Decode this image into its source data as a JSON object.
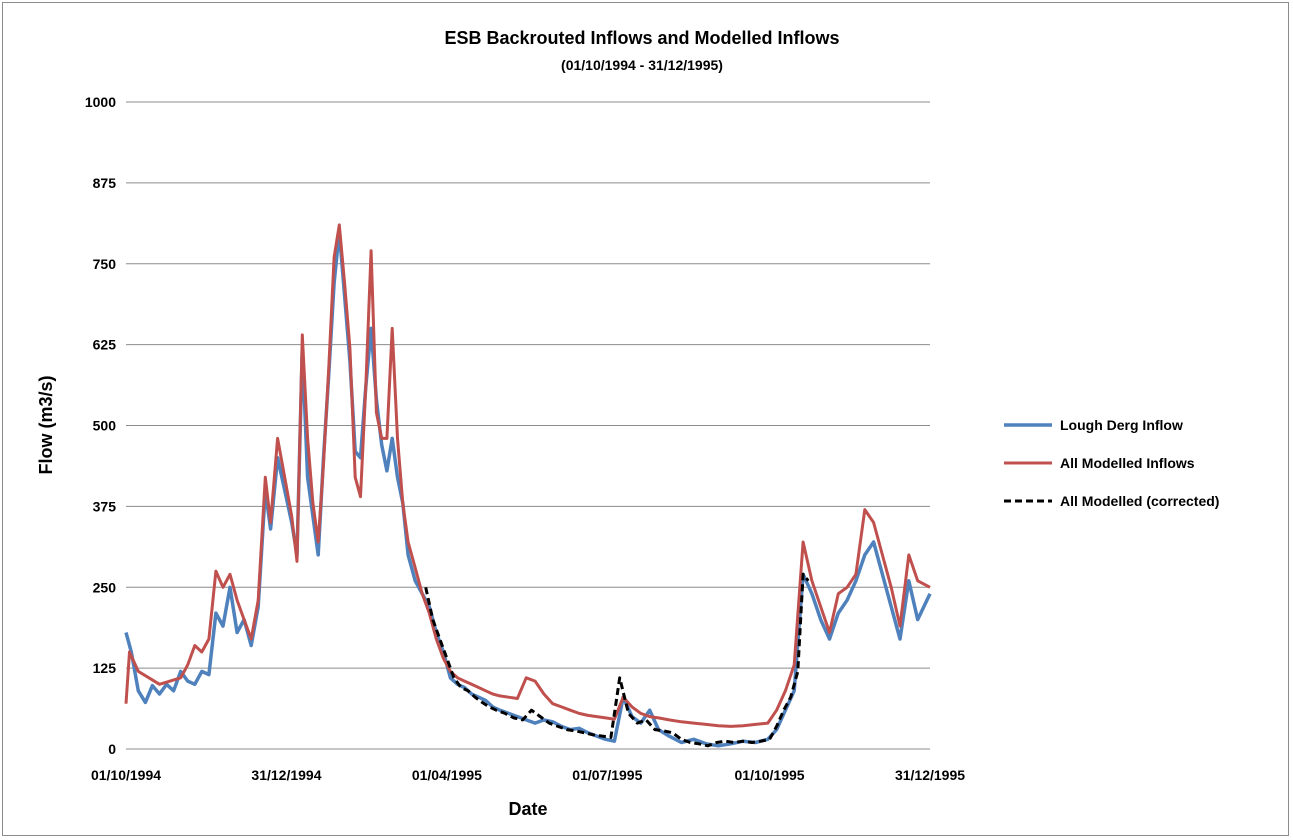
{
  "chart_data": {
    "type": "line",
    "title": "ESB Backrouted Inflows and Modelled Inflows",
    "subtitle": "(01/10/1994 - 31/12/1995)",
    "xlabel": "Date",
    "ylabel": "Flow (m3/s)",
    "xlim": [
      "01/10/1994",
      "31/12/1995"
    ],
    "ylim": [
      0,
      1000
    ],
    "x_tick_labels": [
      "01/10/1994",
      "31/12/1994",
      "01/04/1995",
      "01/07/1995",
      "01/10/1995",
      "31/12/1995"
    ],
    "y_tick_labels": [
      "0",
      "125",
      "250",
      "375",
      "500",
      "625",
      "750",
      "875",
      "1000"
    ],
    "grid": "horizontal",
    "legend_position": "right",
    "colors": {
      "lough_derg": "#4f81bd",
      "all_modelled": "#c0504d",
      "corrected": "#000000"
    },
    "series": [
      {
        "name": "Lough Derg Inflow",
        "style": "solid",
        "points": [
          [
            "01/10/1994",
            180
          ],
          [
            "04/10/1994",
            150
          ],
          [
            "08/10/1994",
            90
          ],
          [
            "12/10/1994",
            72
          ],
          [
            "16/10/1994",
            98
          ],
          [
            "20/10/1994",
            85
          ],
          [
            "24/10/1994",
            100
          ],
          [
            "28/10/1994",
            90
          ],
          [
            "01/11/1994",
            120
          ],
          [
            "05/11/1994",
            105
          ],
          [
            "09/11/1994",
            100
          ],
          [
            "13/11/1994",
            120
          ],
          [
            "17/11/1994",
            115
          ],
          [
            "21/11/1994",
            210
          ],
          [
            "25/11/1994",
            190
          ],
          [
            "29/11/1994",
            250
          ],
          [
            "03/12/1994",
            180
          ],
          [
            "07/12/1994",
            200
          ],
          [
            "11/12/1994",
            160
          ],
          [
            "15/12/1994",
            220
          ],
          [
            "19/12/1994",
            400
          ],
          [
            "22/12/1994",
            340
          ],
          [
            "26/12/1994",
            450
          ],
          [
            "30/12/1994",
            400
          ],
          [
            "03/01/1995",
            350
          ],
          [
            "06/01/1995",
            300
          ],
          [
            "09/01/1995",
            620
          ],
          [
            "12/01/1995",
            420
          ],
          [
            "15/01/1995",
            360
          ],
          [
            "18/01/1995",
            300
          ],
          [
            "21/01/1995",
            450
          ],
          [
            "24/01/1995",
            580
          ],
          [
            "27/01/1995",
            720
          ],
          [
            "30/01/1995",
            800
          ],
          [
            "02/02/1995",
            700
          ],
          [
            "05/02/1995",
            600
          ],
          [
            "08/02/1995",
            460
          ],
          [
            "11/02/1995",
            450
          ],
          [
            "14/02/1995",
            560
          ],
          [
            "17/02/1995",
            650
          ],
          [
            "20/02/1995",
            540
          ],
          [
            "23/02/1995",
            470
          ],
          [
            "26/02/1995",
            430
          ],
          [
            "01/03/1995",
            480
          ],
          [
            "04/03/1995",
            420
          ],
          [
            "07/03/1995",
            380
          ],
          [
            "10/03/1995",
            300
          ],
          [
            "14/03/1995",
            260
          ],
          [
            "18/03/1995",
            240
          ],
          [
            "22/03/1995",
            220
          ],
          [
            "26/03/1995",
            180
          ],
          [
            "30/03/1995",
            150
          ],
          [
            "03/04/1995",
            110
          ],
          [
            "07/04/1995",
            100
          ],
          [
            "11/04/1995",
            95
          ],
          [
            "15/04/1995",
            85
          ],
          [
            "19/04/1995",
            80
          ],
          [
            "23/04/1995",
            75
          ],
          [
            "27/04/1995",
            65
          ],
          [
            "01/05/1995",
            60
          ],
          [
            "06/05/1995",
            55
          ],
          [
            "11/05/1995",
            50
          ],
          [
            "16/05/1995",
            45
          ],
          [
            "21/05/1995",
            40
          ],
          [
            "26/05/1995",
            45
          ],
          [
            "31/05/1995",
            42
          ],
          [
            "05/06/1995",
            35
          ],
          [
            "10/06/1995",
            30
          ],
          [
            "15/06/1995",
            32
          ],
          [
            "20/06/1995",
            25
          ],
          [
            "25/06/1995",
            20
          ],
          [
            "30/06/1995",
            15
          ],
          [
            "05/07/1995",
            12
          ],
          [
            "10/07/1995",
            80
          ],
          [
            "15/07/1995",
            50
          ],
          [
            "20/07/1995",
            40
          ],
          [
            "25/07/1995",
            60
          ],
          [
            "30/07/1995",
            30
          ],
          [
            "05/08/1995",
            20
          ],
          [
            "12/08/1995",
            10
          ],
          [
            "19/08/1995",
            15
          ],
          [
            "26/08/1995",
            8
          ],
          [
            "02/09/1995",
            5
          ],
          [
            "09/09/1995",
            8
          ],
          [
            "16/09/1995",
            12
          ],
          [
            "23/09/1995",
            10
          ],
          [
            "30/09/1995",
            15
          ],
          [
            "05/10/1995",
            30
          ],
          [
            "10/10/1995",
            60
          ],
          [
            "15/10/1995",
            90
          ],
          [
            "20/10/1995",
            270
          ],
          [
            "25/10/1995",
            240
          ],
          [
            "30/10/1995",
            200
          ],
          [
            "04/11/1995",
            170
          ],
          [
            "09/11/1995",
            210
          ],
          [
            "14/11/1995",
            230
          ],
          [
            "19/11/1995",
            260
          ],
          [
            "24/11/1995",
            300
          ],
          [
            "29/11/1995",
            320
          ],
          [
            "04/12/1995",
            270
          ],
          [
            "09/12/1995",
            220
          ],
          [
            "14/12/1995",
            170
          ],
          [
            "19/12/1995",
            260
          ],
          [
            "24/12/1995",
            200
          ],
          [
            "31/12/1995",
            240
          ]
        ]
      },
      {
        "name": "All Modelled Inflows",
        "style": "solid",
        "points": [
          [
            "01/10/1994",
            70
          ],
          [
            "03/10/1994",
            150
          ],
          [
            "08/10/1994",
            120
          ],
          [
            "14/10/1994",
            110
          ],
          [
            "20/10/1994",
            100
          ],
          [
            "26/10/1994",
            105
          ],
          [
            "01/11/1994",
            110
          ],
          [
            "05/11/1994",
            130
          ],
          [
            "09/11/1994",
            160
          ],
          [
            "13/11/1994",
            150
          ],
          [
            "17/11/1994",
            170
          ],
          [
            "21/11/1994",
            275
          ],
          [
            "25/11/1994",
            250
          ],
          [
            "29/11/1994",
            270
          ],
          [
            "03/12/1994",
            230
          ],
          [
            "07/12/1994",
            200
          ],
          [
            "11/12/1994",
            170
          ],
          [
            "15/12/1994",
            230
          ],
          [
            "19/12/1994",
            420
          ],
          [
            "22/12/1994",
            350
          ],
          [
            "26/12/1994",
            480
          ],
          [
            "30/12/1994",
            420
          ],
          [
            "03/01/1995",
            360
          ],
          [
            "06/01/1995",
            290
          ],
          [
            "09/01/1995",
            640
          ],
          [
            "12/01/1995",
            480
          ],
          [
            "15/01/1995",
            380
          ],
          [
            "18/01/1995",
            320
          ],
          [
            "21/01/1995",
            440
          ],
          [
            "24/01/1995",
            590
          ],
          [
            "27/01/1995",
            760
          ],
          [
            "30/01/1995",
            810
          ],
          [
            "02/02/1995",
            720
          ],
          [
            "05/02/1995",
            620
          ],
          [
            "08/02/1995",
            420
          ],
          [
            "11/02/1995",
            390
          ],
          [
            "14/02/1995",
            560
          ],
          [
            "17/02/1995",
            770
          ],
          [
            "20/02/1995",
            520
          ],
          [
            "23/02/1995",
            480
          ],
          [
            "26/02/1995",
            480
          ],
          [
            "01/03/1995",
            650
          ],
          [
            "04/03/1995",
            480
          ],
          [
            "07/03/1995",
            380
          ],
          [
            "10/03/1995",
            320
          ],
          [
            "14/03/1995",
            280
          ],
          [
            "18/03/1995",
            240
          ],
          [
            "22/03/1995",
            210
          ],
          [
            "26/03/1995",
            170
          ],
          [
            "30/03/1995",
            140
          ],
          [
            "03/04/1995",
            120
          ],
          [
            "07/04/1995",
            110
          ],
          [
            "11/04/1995",
            105
          ],
          [
            "15/04/1995",
            100
          ],
          [
            "19/04/1995",
            95
          ],
          [
            "23/04/1995",
            90
          ],
          [
            "27/04/1995",
            85
          ],
          [
            "01/05/1995",
            82
          ],
          [
            "06/05/1995",
            80
          ],
          [
            "11/05/1995",
            78
          ],
          [
            "16/05/1995",
            110
          ],
          [
            "21/05/1995",
            105
          ],
          [
            "26/05/1995",
            85
          ],
          [
            "31/05/1995",
            70
          ],
          [
            "05/06/1995",
            65
          ],
          [
            "10/06/1995",
            60
          ],
          [
            "15/06/1995",
            55
          ],
          [
            "20/06/1995",
            52
          ],
          [
            "25/06/1995",
            50
          ],
          [
            "30/06/1995",
            48
          ],
          [
            "05/07/1995",
            46
          ],
          [
            "10/07/1995",
            80
          ],
          [
            "15/07/1995",
            65
          ],
          [
            "20/07/1995",
            55
          ],
          [
            "25/07/1995",
            50
          ],
          [
            "30/07/1995",
            48
          ],
          [
            "05/08/1995",
            45
          ],
          [
            "12/08/1995",
            42
          ],
          [
            "19/08/1995",
            40
          ],
          [
            "26/08/1995",
            38
          ],
          [
            "02/09/1995",
            36
          ],
          [
            "09/09/1995",
            35
          ],
          [
            "16/09/1995",
            36
          ],
          [
            "23/09/1995",
            38
          ],
          [
            "30/09/1995",
            40
          ],
          [
            "05/10/1995",
            60
          ],
          [
            "10/10/1995",
            90
          ],
          [
            "15/10/1995",
            130
          ],
          [
            "20/10/1995",
            320
          ],
          [
            "25/10/1995",
            260
          ],
          [
            "30/10/1995",
            220
          ],
          [
            "04/11/1995",
            180
          ],
          [
            "09/11/1995",
            240
          ],
          [
            "14/11/1995",
            250
          ],
          [
            "19/11/1995",
            270
          ],
          [
            "24/11/1995",
            370
          ],
          [
            "29/11/1995",
            350
          ],
          [
            "04/12/1995",
            300
          ],
          [
            "09/12/1995",
            250
          ],
          [
            "14/12/1995",
            190
          ],
          [
            "19/12/1995",
            300
          ],
          [
            "24/12/1995",
            260
          ],
          [
            "31/12/1995",
            250
          ]
        ]
      },
      {
        "name": "All Modelled (corrected)",
        "style": "dashed",
        "points": [
          [
            "20/03/1995",
            250
          ],
          [
            "24/03/1995",
            200
          ],
          [
            "28/03/1995",
            170
          ],
          [
            "01/04/1995",
            140
          ],
          [
            "05/04/1995",
            110
          ],
          [
            "09/04/1995",
            95
          ],
          [
            "13/04/1995",
            90
          ],
          [
            "17/04/1995",
            80
          ],
          [
            "21/04/1995",
            72
          ],
          [
            "25/04/1995",
            65
          ],
          [
            "29/04/1995",
            60
          ],
          [
            "04/05/1995",
            55
          ],
          [
            "09/05/1995",
            48
          ],
          [
            "14/05/1995",
            45
          ],
          [
            "19/05/1995",
            60
          ],
          [
            "24/05/1995",
            50
          ],
          [
            "29/05/1995",
            40
          ],
          [
            "03/06/1995",
            35
          ],
          [
            "08/06/1995",
            30
          ],
          [
            "13/06/1995",
            28
          ],
          [
            "18/06/1995",
            25
          ],
          [
            "23/06/1995",
            22
          ],
          [
            "28/06/1995",
            20
          ],
          [
            "03/07/1995",
            18
          ],
          [
            "08/07/1995",
            110
          ],
          [
            "13/07/1995",
            55
          ],
          [
            "18/07/1995",
            40
          ],
          [
            "23/07/1995",
            45
          ],
          [
            "28/07/1995",
            30
          ],
          [
            "02/08/1995",
            28
          ],
          [
            "07/08/1995",
            25
          ],
          [
            "12/08/1995",
            15
          ],
          [
            "17/08/1995",
            10
          ],
          [
            "22/08/1995",
            8
          ],
          [
            "27/08/1995",
            5
          ],
          [
            "01/09/1995",
            10
          ],
          [
            "06/09/1995",
            12
          ],
          [
            "11/09/1995",
            10
          ],
          [
            "16/09/1995",
            12
          ],
          [
            "21/09/1995",
            10
          ],
          [
            "26/09/1995",
            12
          ],
          [
            "01/10/1995",
            15
          ],
          [
            "05/10/1995",
            35
          ],
          [
            "09/10/1995",
            60
          ],
          [
            "13/10/1995",
            80
          ],
          [
            "17/10/1995",
            120
          ],
          [
            "20/10/1995",
            270
          ],
          [
            "23/10/1995",
            260
          ]
        ]
      }
    ]
  }
}
